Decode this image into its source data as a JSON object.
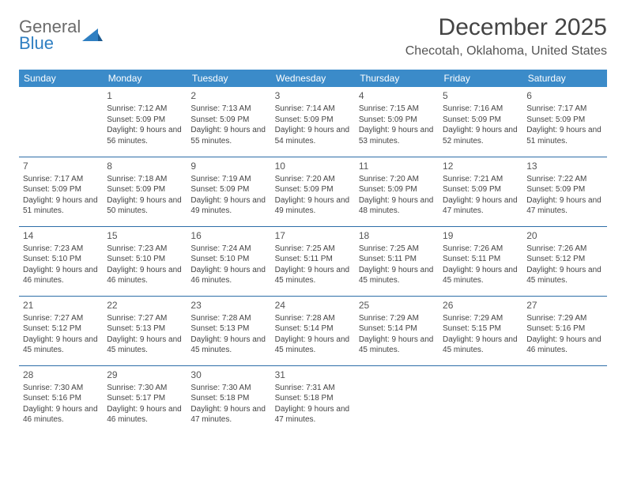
{
  "logo": {
    "line1": "General",
    "line2": "Blue"
  },
  "title": "December 2025",
  "location": "Checotah, Oklahoma, United States",
  "colors": {
    "header_bg": "#3b8bc9",
    "header_text": "#ffffff",
    "row_border": "#2d6ea8",
    "logo_gray": "#6b6b6b",
    "logo_blue": "#2f7fc2",
    "body_text": "#444444"
  },
  "typography": {
    "title_fontsize": 30,
    "location_fontsize": 16,
    "dayheader_fontsize": 12,
    "cell_fontsize": 10,
    "daynum_fontsize": 12
  },
  "layout": {
    "columns": 7,
    "rows": 5,
    "first_weekday_offset": 1
  },
  "day_headers": [
    "Sunday",
    "Monday",
    "Tuesday",
    "Wednesday",
    "Thursday",
    "Friday",
    "Saturday"
  ],
  "days": [
    {
      "n": 1,
      "sr": "7:12 AM",
      "ss": "5:09 PM",
      "dl": "9 hours and 56 minutes."
    },
    {
      "n": 2,
      "sr": "7:13 AM",
      "ss": "5:09 PM",
      "dl": "9 hours and 55 minutes."
    },
    {
      "n": 3,
      "sr": "7:14 AM",
      "ss": "5:09 PM",
      "dl": "9 hours and 54 minutes."
    },
    {
      "n": 4,
      "sr": "7:15 AM",
      "ss": "5:09 PM",
      "dl": "9 hours and 53 minutes."
    },
    {
      "n": 5,
      "sr": "7:16 AM",
      "ss": "5:09 PM",
      "dl": "9 hours and 52 minutes."
    },
    {
      "n": 6,
      "sr": "7:17 AM",
      "ss": "5:09 PM",
      "dl": "9 hours and 51 minutes."
    },
    {
      "n": 7,
      "sr": "7:17 AM",
      "ss": "5:09 PM",
      "dl": "9 hours and 51 minutes."
    },
    {
      "n": 8,
      "sr": "7:18 AM",
      "ss": "5:09 PM",
      "dl": "9 hours and 50 minutes."
    },
    {
      "n": 9,
      "sr": "7:19 AM",
      "ss": "5:09 PM",
      "dl": "9 hours and 49 minutes."
    },
    {
      "n": 10,
      "sr": "7:20 AM",
      "ss": "5:09 PM",
      "dl": "9 hours and 49 minutes."
    },
    {
      "n": 11,
      "sr": "7:20 AM",
      "ss": "5:09 PM",
      "dl": "9 hours and 48 minutes."
    },
    {
      "n": 12,
      "sr": "7:21 AM",
      "ss": "5:09 PM",
      "dl": "9 hours and 47 minutes."
    },
    {
      "n": 13,
      "sr": "7:22 AM",
      "ss": "5:09 PM",
      "dl": "9 hours and 47 minutes."
    },
    {
      "n": 14,
      "sr": "7:23 AM",
      "ss": "5:10 PM",
      "dl": "9 hours and 46 minutes."
    },
    {
      "n": 15,
      "sr": "7:23 AM",
      "ss": "5:10 PM",
      "dl": "9 hours and 46 minutes."
    },
    {
      "n": 16,
      "sr": "7:24 AM",
      "ss": "5:10 PM",
      "dl": "9 hours and 46 minutes."
    },
    {
      "n": 17,
      "sr": "7:25 AM",
      "ss": "5:11 PM",
      "dl": "9 hours and 45 minutes."
    },
    {
      "n": 18,
      "sr": "7:25 AM",
      "ss": "5:11 PM",
      "dl": "9 hours and 45 minutes."
    },
    {
      "n": 19,
      "sr": "7:26 AM",
      "ss": "5:11 PM",
      "dl": "9 hours and 45 minutes."
    },
    {
      "n": 20,
      "sr": "7:26 AM",
      "ss": "5:12 PM",
      "dl": "9 hours and 45 minutes."
    },
    {
      "n": 21,
      "sr": "7:27 AM",
      "ss": "5:12 PM",
      "dl": "9 hours and 45 minutes."
    },
    {
      "n": 22,
      "sr": "7:27 AM",
      "ss": "5:13 PM",
      "dl": "9 hours and 45 minutes."
    },
    {
      "n": 23,
      "sr": "7:28 AM",
      "ss": "5:13 PM",
      "dl": "9 hours and 45 minutes."
    },
    {
      "n": 24,
      "sr": "7:28 AM",
      "ss": "5:14 PM",
      "dl": "9 hours and 45 minutes."
    },
    {
      "n": 25,
      "sr": "7:29 AM",
      "ss": "5:14 PM",
      "dl": "9 hours and 45 minutes."
    },
    {
      "n": 26,
      "sr": "7:29 AM",
      "ss": "5:15 PM",
      "dl": "9 hours and 45 minutes."
    },
    {
      "n": 27,
      "sr": "7:29 AM",
      "ss": "5:16 PM",
      "dl": "9 hours and 46 minutes."
    },
    {
      "n": 28,
      "sr": "7:30 AM",
      "ss": "5:16 PM",
      "dl": "9 hours and 46 minutes."
    },
    {
      "n": 29,
      "sr": "7:30 AM",
      "ss": "5:17 PM",
      "dl": "9 hours and 46 minutes."
    },
    {
      "n": 30,
      "sr": "7:30 AM",
      "ss": "5:18 PM",
      "dl": "9 hours and 47 minutes."
    },
    {
      "n": 31,
      "sr": "7:31 AM",
      "ss": "5:18 PM",
      "dl": "9 hours and 47 minutes."
    }
  ],
  "labels": {
    "sunrise": "Sunrise:",
    "sunset": "Sunset:",
    "daylight": "Daylight:"
  }
}
